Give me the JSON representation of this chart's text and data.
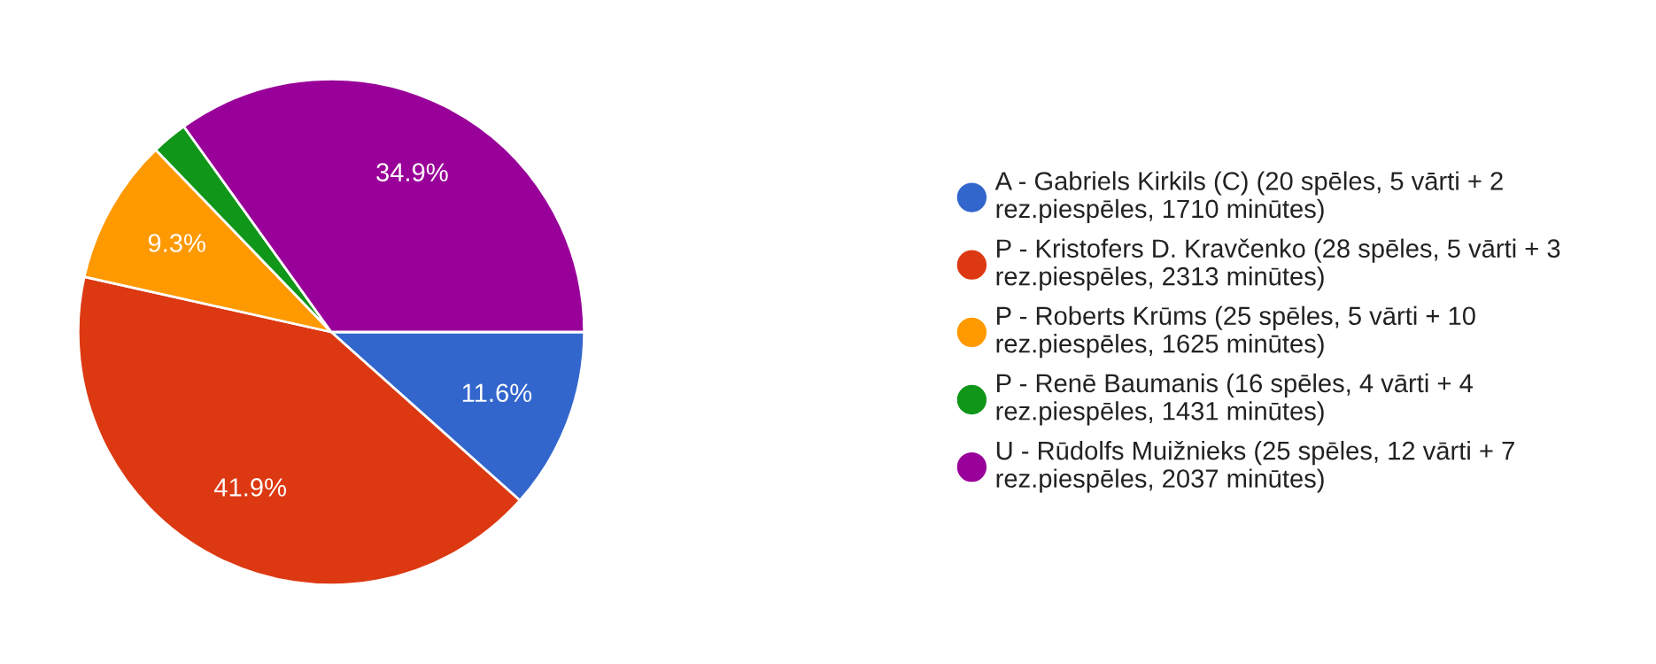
{
  "chart_data": {
    "type": "pie",
    "categories": [
      "A - Gabriels Kirkils (C) (20 spēles, 5 vārti + 2 rez.piespēles, 1710 minūtes)",
      "P - Kristofers D. Kravčenko (28 spēles, 5 vārti + 3 rez.piespēles, 2313 minūtes)",
      "P - Roberts Krūms (25 spēles, 5 vārti + 10 rez.piespēles, 1625 minūtes)",
      "P - Renē Baumanis (16 spēles, 4 vārti + 4 rez.piespēles, 1431 minūtes)",
      "U - Rūdolfs Muižnieks (25 spēles, 12 vārti + 7 rez.piespēles, 2037 minūtes)"
    ],
    "values": [
      11.6,
      41.9,
      9.3,
      2.3,
      34.9
    ],
    "value_labels": [
      "11.6%",
      "41.9%",
      "9.3%",
      null,
      "34.9%"
    ],
    "colors": [
      "#3366cc",
      "#dc3912",
      "#ff9900",
      "#109618",
      "#990099"
    ],
    "legend": "right"
  }
}
